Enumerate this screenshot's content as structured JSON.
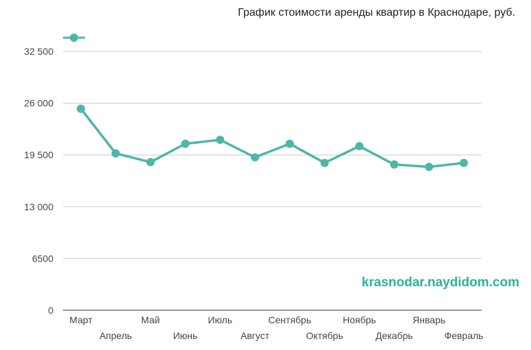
{
  "chart_data": {
    "type": "line",
    "title": "График стоимости аренды квартир в Краснодаре, руб.",
    "xlabel": "",
    "ylabel": "",
    "categories": [
      "Март",
      "Апрель",
      "Май",
      "Июнь",
      "Июль",
      "Август",
      "Сентябрь",
      "Октябрь",
      "Ноябрь",
      "Декабрь",
      "Январь",
      "Февраль"
    ],
    "series": [
      {
        "name": "",
        "color": "#4db6a8",
        "values": [
          25300,
          19700,
          18600,
          20900,
          21400,
          19200,
          20900,
          18500,
          20600,
          18300,
          18000,
          18500
        ]
      }
    ],
    "ylim": [
      0,
      32500
    ],
    "yticks": [
      0,
      6500,
      13000,
      19500,
      26000,
      32500
    ],
    "ytick_labels": [
      "0",
      "6500",
      "13 000",
      "19 500",
      "26 000",
      "32 500"
    ],
    "grid": true,
    "legend": "top-left",
    "watermark": "krasnodar.naydidom.com"
  }
}
